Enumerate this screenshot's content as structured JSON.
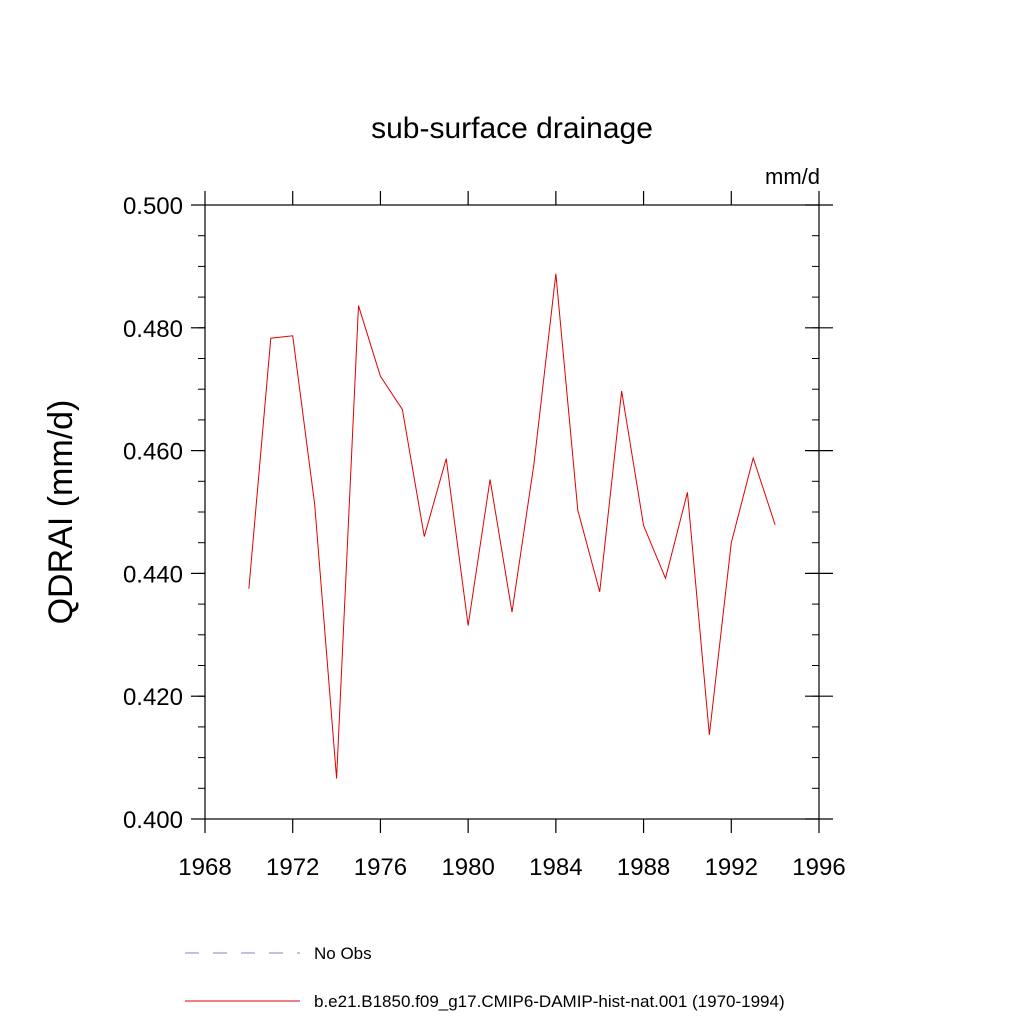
{
  "chart_data": {
    "type": "line",
    "title": "sub-surface drainage",
    "units_label": "mm/d",
    "xlabel": "",
    "ylabel": "QDRAI  (mm/d)",
    "xlim": [
      1968,
      1996
    ],
    "ylim": [
      0.4,
      0.5
    ],
    "x_ticks": [
      "1968",
      "1972",
      "1976",
      "1980",
      "1984",
      "1988",
      "1992",
      "1996"
    ],
    "y_ticks": [
      "0.400",
      "0.420",
      "0.440",
      "0.460",
      "0.480",
      "0.500"
    ],
    "grid": false,
    "legend_position": "bottom",
    "series": [
      {
        "name": "No Obs",
        "color": "#8a7fc8",
        "dash": true,
        "x": [],
        "y": []
      },
      {
        "name": "b.e21.B1850.f09_g17.CMIP6-DAMIP-hist-nat.001 (1970-1994)",
        "color": "#e00000",
        "dash": false,
        "x": [
          1970,
          1971,
          1972,
          1973,
          1974,
          1975,
          1976,
          1977,
          1978,
          1979,
          1980,
          1981,
          1982,
          1983,
          1984,
          1985,
          1986,
          1987,
          1988,
          1989,
          1990,
          1991,
          1992,
          1993,
          1994
        ],
        "y": [
          0.4375,
          0.4783,
          0.4787,
          0.4513,
          0.4066,
          0.4836,
          0.4721,
          0.4667,
          0.446,
          0.4587,
          0.4315,
          0.4553,
          0.4337,
          0.4578,
          0.4888,
          0.4503,
          0.437,
          0.4697,
          0.4478,
          0.4392,
          0.4532,
          0.4137,
          0.445,
          0.4588,
          0.4479
        ]
      }
    ]
  }
}
